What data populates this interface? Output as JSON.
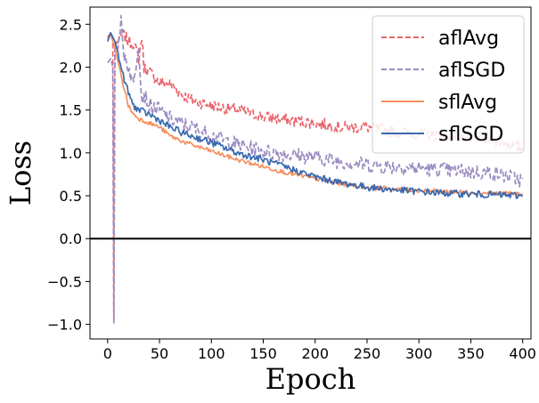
{
  "chart_data": {
    "type": "line",
    "title": "",
    "xlabel": "Epoch",
    "ylabel": "Loss",
    "xlim": [
      -17,
      408
    ],
    "ylim": [
      -1.17,
      2.7
    ],
    "xticks": [
      0,
      50,
      100,
      150,
      200,
      250,
      300,
      350,
      400
    ],
    "yticks": [
      -1.0,
      -0.5,
      0.0,
      0.5,
      1.0,
      1.5,
      2.0,
      2.5
    ],
    "ytick_labels": [
      "−1.0",
      "−0.5",
      "0.0",
      "0.5",
      "1.0",
      "1.5",
      "2.0",
      "2.5"
    ],
    "reference_line": {
      "y": 0.0,
      "color": "#000000"
    },
    "legend": {
      "position": "top-right"
    },
    "series": [
      {
        "name": "aflAvg",
        "color": "#e8666e",
        "style": "dashed",
        "x": [
          0,
          3,
          5,
          6,
          7,
          10,
          15,
          20,
          25,
          30,
          33,
          35,
          40,
          50,
          60,
          70,
          80,
          100,
          125,
          150,
          175,
          200,
          225,
          250,
          275,
          300,
          325,
          350,
          375,
          400
        ],
        "values": [
          2.35,
          2.4,
          2.3,
          -0.95,
          2.25,
          2.3,
          2.38,
          2.3,
          2.28,
          2.1,
          2.35,
          2.0,
          1.95,
          1.82,
          1.8,
          1.7,
          1.62,
          1.55,
          1.5,
          1.42,
          1.38,
          1.35,
          1.3,
          1.3,
          1.25,
          1.22,
          1.2,
          1.18,
          1.15,
          1.05
        ]
      },
      {
        "name": "aflSGD",
        "color": "#9a8cc1",
        "style": "dashed",
        "x": [
          0,
          3,
          5,
          6,
          7,
          10,
          13,
          15,
          20,
          25,
          30,
          33,
          35,
          40,
          50,
          60,
          70,
          80,
          100,
          125,
          150,
          175,
          200,
          225,
          250,
          275,
          300,
          325,
          350,
          375,
          400
        ],
        "values": [
          2.05,
          2.1,
          2.0,
          -1.0,
          2.2,
          2.3,
          2.52,
          2.2,
          2.0,
          1.8,
          2.3,
          1.6,
          1.7,
          1.55,
          1.5,
          1.4,
          1.35,
          1.3,
          1.2,
          1.1,
          1.02,
          0.98,
          0.95,
          0.9,
          0.86,
          0.84,
          0.82,
          0.8,
          0.78,
          0.76,
          0.68
        ]
      },
      {
        "name": "sflAvg",
        "color": "#f5905e",
        "style": "solid",
        "x": [
          0,
          3,
          5,
          7,
          10,
          15,
          20,
          25,
          30,
          40,
          50,
          60,
          75,
          100,
          125,
          150,
          175,
          200,
          225,
          250,
          275,
          300,
          325,
          350,
          375,
          400
        ],
        "values": [
          2.33,
          2.38,
          2.3,
          2.25,
          2.05,
          1.8,
          1.55,
          1.45,
          1.4,
          1.35,
          1.3,
          1.2,
          1.12,
          1.02,
          0.92,
          0.84,
          0.76,
          0.7,
          0.64,
          0.6,
          0.58,
          0.56,
          0.55,
          0.54,
          0.53,
          0.52
        ]
      },
      {
        "name": "sflSGD",
        "color": "#3a6ab0",
        "style": "solid",
        "x": [
          0,
          3,
          5,
          7,
          10,
          15,
          20,
          25,
          30,
          40,
          50,
          60,
          75,
          100,
          125,
          150,
          175,
          200,
          225,
          250,
          275,
          300,
          325,
          350,
          375,
          400
        ],
        "values": [
          2.3,
          2.4,
          2.35,
          2.3,
          2.15,
          1.9,
          1.7,
          1.55,
          1.5,
          1.45,
          1.38,
          1.3,
          1.22,
          1.12,
          1.0,
          0.92,
          0.82,
          0.72,
          0.65,
          0.6,
          0.57,
          0.55,
          0.53,
          0.52,
          0.51,
          0.5
        ]
      }
    ]
  }
}
